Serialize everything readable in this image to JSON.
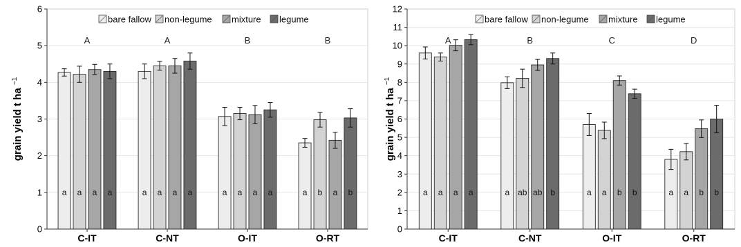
{
  "legend": {
    "entries": [
      "bare fallow",
      "non-legume",
      "mixture",
      "legume"
    ],
    "colors": [
      "#ededed",
      "#d3d3d3",
      "#a6a6a6",
      "#6b6b6b"
    ]
  },
  "chart_data": [
    {
      "type": "bar",
      "title": "",
      "xlabel": "",
      "ylabel": "grain yield t ha",
      "ylabel_superscript": "−1",
      "ylim": [
        0,
        6
      ],
      "yticks": [
        0,
        1,
        2,
        3,
        4,
        5,
        6
      ],
      "grid": true,
      "legend_position": "top",
      "categories": [
        "C-IT",
        "C-NT",
        "O-IT",
        "O-RT"
      ],
      "group_letters": [
        "A",
        "A",
        "B",
        "B"
      ],
      "series": [
        {
          "name": "bare fallow",
          "values": [
            4.27,
            4.3,
            3.07,
            2.35
          ],
          "errors": [
            0.1,
            0.2,
            0.25,
            0.12
          ],
          "letters": [
            "a",
            "a",
            "a",
            "a"
          ]
        },
        {
          "name": "non-legume",
          "values": [
            4.22,
            4.45,
            3.15,
            2.98
          ],
          "errors": [
            0.22,
            0.12,
            0.17,
            0.2
          ],
          "letters": [
            "a",
            "a",
            "a",
            "b"
          ]
        },
        {
          "name": "mixture",
          "values": [
            4.35,
            4.45,
            3.12,
            2.42
          ],
          "errors": [
            0.14,
            0.2,
            0.25,
            0.22
          ],
          "letters": [
            "a",
            "a",
            "a",
            "a"
          ]
        },
        {
          "name": "legume",
          "values": [
            4.3,
            4.58,
            3.25,
            3.03
          ],
          "errors": [
            0.2,
            0.22,
            0.2,
            0.25
          ],
          "letters": [
            "a",
            "a",
            "a",
            "b"
          ]
        }
      ]
    },
    {
      "type": "bar",
      "title": "",
      "xlabel": "",
      "ylabel": "grain yield t ha",
      "ylabel_superscript": "−1",
      "ylim": [
        0,
        12
      ],
      "yticks": [
        0,
        1,
        2,
        3,
        4,
        5,
        6,
        7,
        8,
        9,
        10,
        11,
        12
      ],
      "grid": true,
      "legend_position": "top",
      "categories": [
        "C-IT",
        "C-NT",
        "O-IT",
        "O-RT"
      ],
      "group_letters": [
        "A",
        "B",
        "C",
        "D"
      ],
      "series": [
        {
          "name": "bare fallow",
          "values": [
            9.6,
            7.98,
            5.7,
            3.8
          ],
          "errors": [
            0.33,
            0.32,
            0.6,
            0.55
          ],
          "letters": [
            "a",
            "a",
            "a",
            "a"
          ]
        },
        {
          "name": "non-legume",
          "values": [
            9.38,
            8.22,
            5.38,
            4.22
          ],
          "errors": [
            0.22,
            0.5,
            0.45,
            0.45
          ],
          "letters": [
            "a",
            "ab",
            "a",
            "a"
          ]
        },
        {
          "name": "mixture",
          "values": [
            10.02,
            8.95,
            8.1,
            5.47
          ],
          "errors": [
            0.3,
            0.3,
            0.25,
            0.48
          ],
          "letters": [
            "a",
            "ab",
            "b",
            "b"
          ]
        },
        {
          "name": "legume",
          "values": [
            10.33,
            9.3,
            7.38,
            6.0
          ],
          "errors": [
            0.28,
            0.3,
            0.25,
            0.75
          ],
          "letters": [
            "a",
            "b",
            "b",
            "b"
          ]
        }
      ]
    }
  ]
}
